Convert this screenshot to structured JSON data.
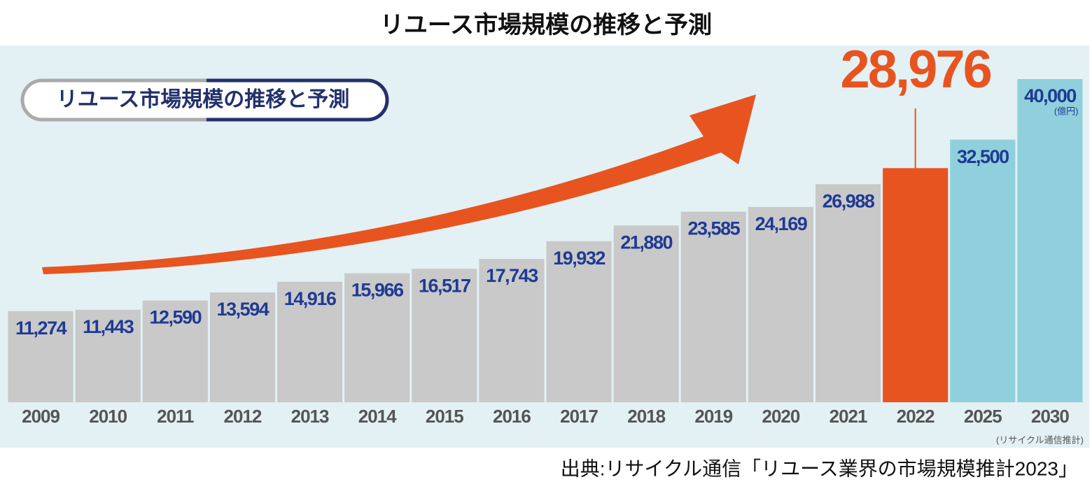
{
  "chart_data": {
    "type": "bar",
    "title": "リユース市場規模の推移と予測",
    "badge": "リユース市場規模の推移と予測",
    "categories": [
      "2009",
      "2010",
      "2011",
      "2012",
      "2013",
      "2014",
      "2015",
      "2016",
      "2017",
      "2018",
      "2019",
      "2020",
      "2021",
      "2022",
      "2025",
      "2030"
    ],
    "values": [
      11274,
      11443,
      12590,
      13594,
      14916,
      15966,
      16517,
      17743,
      19932,
      21880,
      23585,
      24169,
      26988,
      28976,
      32500,
      40000
    ],
    "value_labels": [
      "11,274",
      "11,443",
      "12,590",
      "13,594",
      "14,916",
      "15,966",
      "16,517",
      "17,743",
      "19,932",
      "21,880",
      "23,585",
      "24,169",
      "26,988",
      "28,976",
      "32,500",
      "40,000"
    ],
    "colors": [
      "#c9c9c9",
      "#c9c9c9",
      "#c9c9c9",
      "#c9c9c9",
      "#c9c9c9",
      "#c9c9c9",
      "#c9c9c9",
      "#c9c9c9",
      "#c9c9c9",
      "#c9c9c9",
      "#c9c9c9",
      "#c9c9c9",
      "#c9c9c9",
      "#e8541f",
      "#8fd0dc",
      "#8fd0dc"
    ],
    "unit": "(億円)",
    "note": "(リサイクル通信推計)",
    "source": "出典:リサイクル通信「リユース業界の市場規模推計2023」"
  }
}
